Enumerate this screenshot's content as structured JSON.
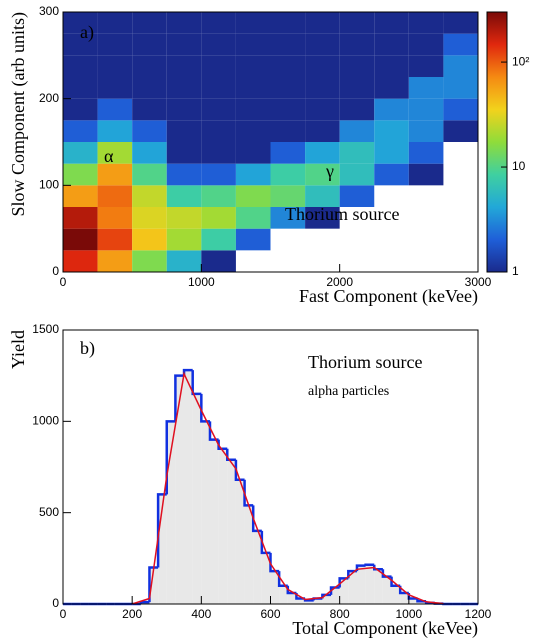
{
  "chart_data": [
    {
      "type": "heatmap",
      "panel_label": "a)",
      "annotations": [
        "α",
        "γ",
        "Thorium source"
      ],
      "x_label": "Fast Component (keVee)",
      "y_label": "Slow Component (arb units)",
      "xlim": [
        0,
        3000
      ],
      "xticks": [
        0,
        1000,
        2000,
        3000
      ],
      "ylim": [
        0,
        300
      ],
      "yticks": [
        0,
        100,
        200,
        300
      ],
      "zlim": [
        1,
        300
      ],
      "zticks": [
        1,
        10,
        {
          "value": 100,
          "label": "10²"
        }
      ],
      "log_z": true,
      "colormap": [
        "#1a2a8c",
        "#1f5fd8",
        "#22a8d8",
        "#3fd0a0",
        "#8fdc3a",
        "#f2d21c",
        "#f58a12",
        "#e0280e",
        "#7a0a08"
      ],
      "xbins": [
        0,
        250,
        500,
        750,
        1000,
        1250,
        1500,
        1750,
        2000,
        2250,
        2500,
        2750,
        3000
      ],
      "ybins": [
        0,
        25,
        50,
        75,
        100,
        125,
        150,
        175,
        200,
        225,
        250,
        275,
        300
      ],
      "z": [
        [
          150,
          60,
          15,
          5,
          1,
          0,
          0,
          0,
          0,
          0,
          0,
          0
        ],
        [
          300,
          120,
          40,
          20,
          8,
          2,
          0,
          0,
          0,
          0,
          0,
          0
        ],
        [
          200,
          80,
          30,
          25,
          20,
          10,
          3,
          1,
          0,
          0,
          0,
          0
        ],
        [
          60,
          90,
          25,
          8,
          10,
          15,
          12,
          6,
          2,
          0,
          0,
          0
        ],
        [
          15,
          60,
          10,
          2,
          2,
          4,
          8,
          10,
          6,
          2,
          1,
          0
        ],
        [
          5,
          20,
          4,
          1,
          1,
          1,
          2,
          4,
          6,
          4,
          2,
          0
        ],
        [
          2,
          4,
          2,
          1,
          1,
          1,
          1,
          1,
          3,
          4,
          3,
          1
        ],
        [
          1,
          2,
          1,
          1,
          1,
          1,
          1,
          1,
          1,
          3,
          3,
          2
        ],
        [
          1,
          1,
          1,
          1,
          1,
          1,
          1,
          1,
          1,
          1,
          3,
          3
        ],
        [
          1,
          1,
          1,
          1,
          1,
          1,
          1,
          1,
          1,
          1,
          1,
          3
        ],
        [
          1,
          1,
          1,
          1,
          1,
          1,
          1,
          1,
          1,
          1,
          1,
          2
        ],
        [
          1,
          1,
          1,
          1,
          1,
          1,
          1,
          1,
          1,
          1,
          1,
          1
        ]
      ]
    },
    {
      "type": "histogram",
      "panel_label": "b)",
      "annotations": [
        "Thorium source",
        "alpha particles"
      ],
      "x_label": "Total Component (keVee)",
      "y_label": "Yield",
      "xlim": [
        0,
        1200
      ],
      "xticks": [
        0,
        200,
        400,
        600,
        800,
        1000,
        1200
      ],
      "ylim": [
        0,
        1500
      ],
      "yticks": [
        0,
        500,
        1000,
        1500
      ],
      "color": "#1030e0",
      "fill": "#e8e8e8",
      "bins": [
        0,
        25,
        50,
        75,
        100,
        125,
        150,
        175,
        200,
        225,
        250,
        275,
        300,
        325,
        350,
        375,
        400,
        425,
        450,
        475,
        500,
        525,
        550,
        575,
        600,
        625,
        650,
        675,
        700,
        725,
        750,
        775,
        800,
        825,
        850,
        875,
        900,
        925,
        950,
        975,
        1000,
        1025,
        1050,
        1075,
        1100,
        1125,
        1150,
        1175,
        1200
      ],
      "values": [
        0,
        0,
        0,
        0,
        0,
        0,
        0,
        0,
        0,
        10,
        200,
        600,
        1000,
        1250,
        1280,
        1150,
        1000,
        900,
        850,
        790,
        680,
        540,
        400,
        280,
        180,
        100,
        60,
        30,
        20,
        30,
        50,
        90,
        140,
        180,
        210,
        215,
        190,
        150,
        100,
        60,
        30,
        15,
        6,
        2,
        0,
        0,
        0,
        0
      ],
      "fit": {
        "color": "#e01020",
        "x": [
          200,
          250,
          300,
          350,
          400,
          450,
          500,
          550,
          600,
          650,
          700,
          750,
          800,
          850,
          900,
          950,
          1000,
          1050,
          1100
        ],
        "values": [
          0,
          30,
          700,
          1260,
          1060,
          870,
          740,
          470,
          220,
          80,
          25,
          35,
          110,
          190,
          200,
          130,
          50,
          12,
          2
        ]
      }
    }
  ]
}
